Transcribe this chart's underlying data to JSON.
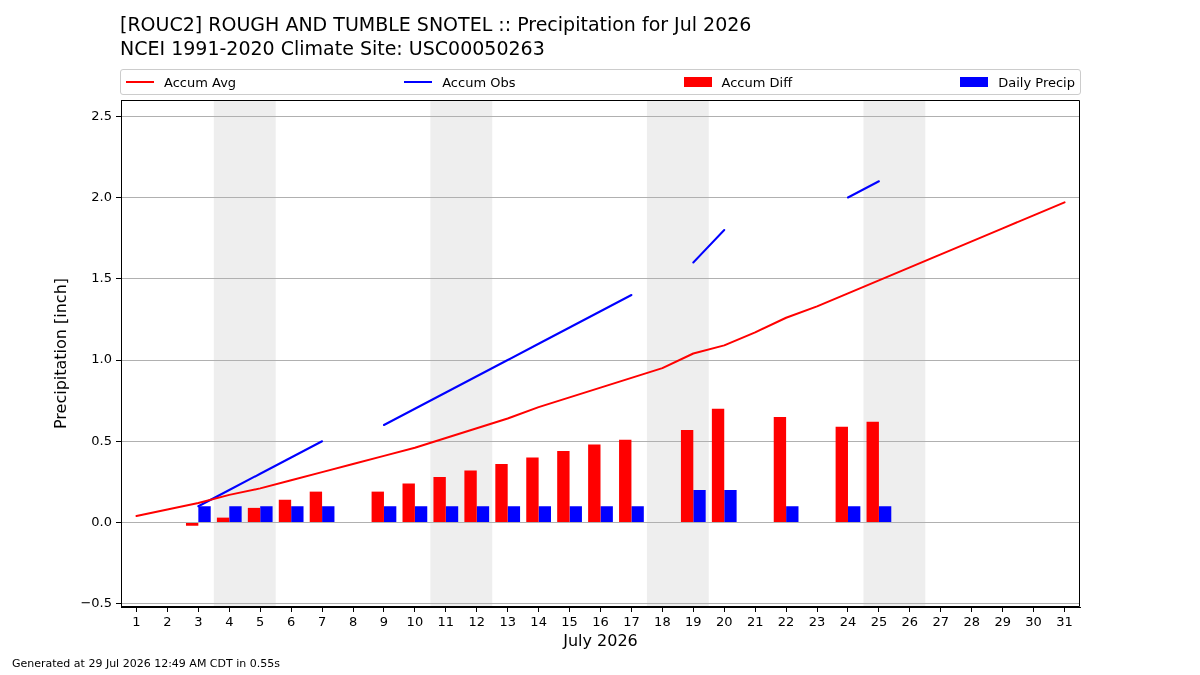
{
  "chart_data": {
    "type": "bar",
    "title": "[ROUC2] ROUGH AND TUMBLE SNOTEL :: Precipitation for Jul 2026",
    "subtitle": "NCEI 1991-2020 Climate Site: USC00050263",
    "xlabel": "July 2026",
    "ylabel": "Precipitation [inch]",
    "annotations": [
      "Generated at 29 Jul 2026 12:49 AM CDT in 0.55s"
    ],
    "x": [
      1,
      2,
      3,
      4,
      5,
      6,
      7,
      8,
      9,
      10,
      11,
      12,
      13,
      14,
      15,
      16,
      17,
      18,
      19,
      20,
      21,
      22,
      23,
      24,
      25,
      26,
      27,
      28,
      29,
      30,
      31
    ],
    "series": [
      {
        "name": "Accum Avg",
        "type": "line",
        "color": "#ff0000",
        "values": [
          0.04,
          0.08,
          0.12,
          0.17,
          0.21,
          0.26,
          0.31,
          0.36,
          0.41,
          0.46,
          0.52,
          0.58,
          0.64,
          0.71,
          0.77,
          0.83,
          0.89,
          0.95,
          1.04,
          1.09,
          1.17,
          1.26,
          1.33,
          1.41,
          1.49,
          1.57,
          1.65,
          1.73,
          1.81,
          1.89,
          1.97
        ]
      },
      {
        "name": "Accum Obs",
        "type": "line",
        "color": "#0000ff",
        "values": [
          null,
          null,
          0.1,
          0.2,
          0.3,
          0.4,
          0.5,
          null,
          0.6,
          0.7,
          0.8,
          0.9,
          1.0,
          1.1,
          1.2,
          1.3,
          1.4,
          null,
          1.6,
          1.8,
          null,
          null,
          null,
          2.0,
          2.1,
          null,
          null,
          null,
          null,
          null,
          null
        ]
      },
      {
        "name": "Accum Diff",
        "color": "#ff0000",
        "values": [
          null,
          null,
          -0.02,
          0.03,
          0.09,
          0.14,
          0.19,
          null,
          0.19,
          0.24,
          0.28,
          0.32,
          0.36,
          0.4,
          0.44,
          0.48,
          0.51,
          null,
          0.57,
          0.7,
          null,
          0.65,
          null,
          0.59,
          0.62,
          null,
          null,
          null,
          null,
          null,
          null
        ]
      },
      {
        "name": "Daily Precip",
        "color": "#0000ff",
        "values": [
          null,
          null,
          0.1,
          0.1,
          0.1,
          0.1,
          0.1,
          null,
          0.1,
          0.1,
          0.1,
          0.1,
          0.1,
          0.1,
          0.1,
          0.1,
          0.1,
          null,
          0.2,
          0.2,
          null,
          0.1,
          null,
          0.1,
          0.1,
          null,
          null,
          null,
          null,
          null,
          null
        ]
      }
    ],
    "xlim": [
      0.5,
      31.5
    ],
    "xticks": [
      1,
      2,
      3,
      4,
      5,
      6,
      7,
      8,
      9,
      10,
      11,
      12,
      13,
      14,
      15,
      16,
      17,
      18,
      19,
      20,
      21,
      22,
      23,
      24,
      25,
      26,
      27,
      28,
      29,
      30,
      31
    ],
    "ylim": [
      -0.52,
      2.6
    ],
    "yticks": [
      {
        "value": -0.5,
        "label": "−0.5"
      },
      {
        "value": 0,
        "label": "0.0"
      },
      0.5,
      {
        "value": 1,
        "label": "1.0"
      },
      1.5,
      {
        "value": 2,
        "label": "2.0"
      },
      2.5
    ],
    "bands": [
      {
        "axis": "x",
        "from": 3.5,
        "to": 5.5,
        "color": "#eeeeee"
      },
      {
        "axis": "x",
        "from": 10.5,
        "to": 12.5,
        "color": "#eeeeee"
      },
      {
        "axis": "x",
        "from": 17.5,
        "to": 19.5,
        "color": "#eeeeee"
      },
      {
        "axis": "x",
        "from": 24.5,
        "to": 26.5,
        "color": "#eeeeee"
      }
    ],
    "grid": "y",
    "legend": "top",
    "marker": "none",
    "line_style": "solid"
  }
}
